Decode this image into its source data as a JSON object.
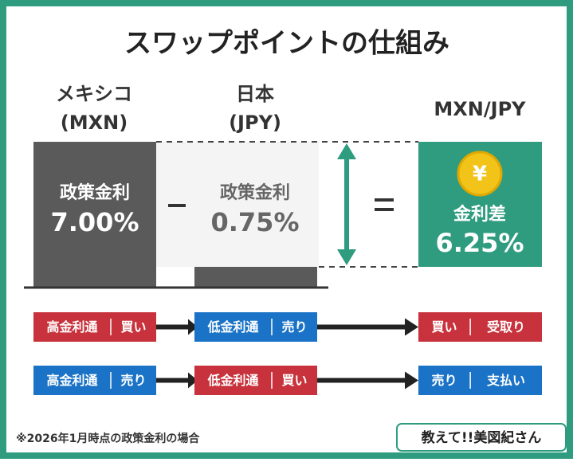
{
  "title": "スワップポイントの仕組み",
  "columns": [
    {
      "name": [
        "メキシコ",
        "(MXN)"
      ],
      "label": "政策金利",
      "value": "7.00%"
    },
    {
      "name": [
        "日本",
        "(JPY)"
      ],
      "label": "政策金利",
      "value": "0.75%"
    },
    {
      "name": [
        "MXN/JPY"
      ],
      "label": "金利差",
      "value": "6.25%"
    }
  ],
  "coin_symbol": "¥",
  "flows": [
    [
      [
        "高金利通",
        "買い"
      ],
      [
        "低金利通",
        "売り"
      ],
      [
        "買い",
        "受取り"
      ]
    ],
    [
      [
        "高金利通",
        "売り"
      ],
      [
        "低金利通",
        "買い"
      ],
      [
        "売り",
        "支払い"
      ]
    ]
  ],
  "footnote": "※2026年1月時点の政策金利の場合",
  "logo": "教えて!!美図紀さん"
}
